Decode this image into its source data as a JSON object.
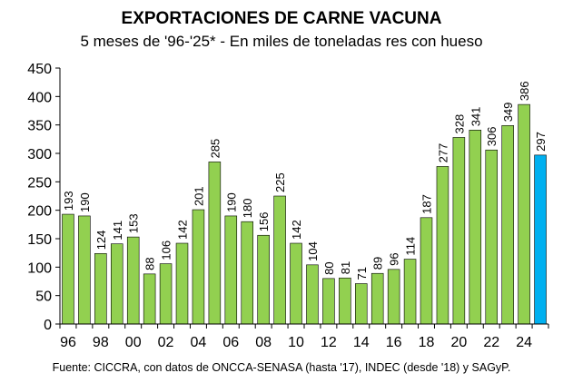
{
  "chart_data": {
    "type": "bar",
    "title": "EXPORTACIONES DE CARNE VACUNA",
    "subtitle": "5 meses de '96-'25* - En miles de toneladas res con hueso",
    "source": "Fuente: CICCRA, con datos de ONCCA-SENASA (hasta '17), INDEC (desde '18) y SAGyP.",
    "categories": [
      "1996",
      "1997",
      "1998",
      "1999",
      "2000",
      "2001",
      "2002",
      "2003",
      "2004",
      "2005",
      "2006",
      "2007",
      "2008",
      "2009",
      "2010",
      "2011",
      "2012",
      "2013",
      "2014",
      "2015",
      "2016",
      "2017",
      "2018",
      "2019",
      "2020",
      "2021",
      "2022",
      "2023",
      "2024",
      "2025"
    ],
    "values": [
      193,
      190,
      124,
      141,
      153,
      88,
      106,
      142,
      201,
      285,
      190,
      180,
      156,
      225,
      142,
      104,
      80,
      81,
      71,
      89,
      96,
      114,
      187,
      277,
      328,
      341,
      306,
      349,
      386,
      297
    ],
    "xtick_labels": [
      "96",
      "98",
      "00",
      "02",
      "04",
      "06",
      "08",
      "10",
      "12",
      "14",
      "16",
      "18",
      "20",
      "22",
      "24"
    ],
    "ylim": [
      0,
      450
    ],
    "yticks": [
      0,
      50,
      100,
      150,
      200,
      250,
      300,
      350,
      400,
      450
    ],
    "grid": false,
    "colors": {
      "bar": "#92D050",
      "highlight": "#00B0F0",
      "edge": "#000000"
    },
    "highlight_category": "2025"
  }
}
